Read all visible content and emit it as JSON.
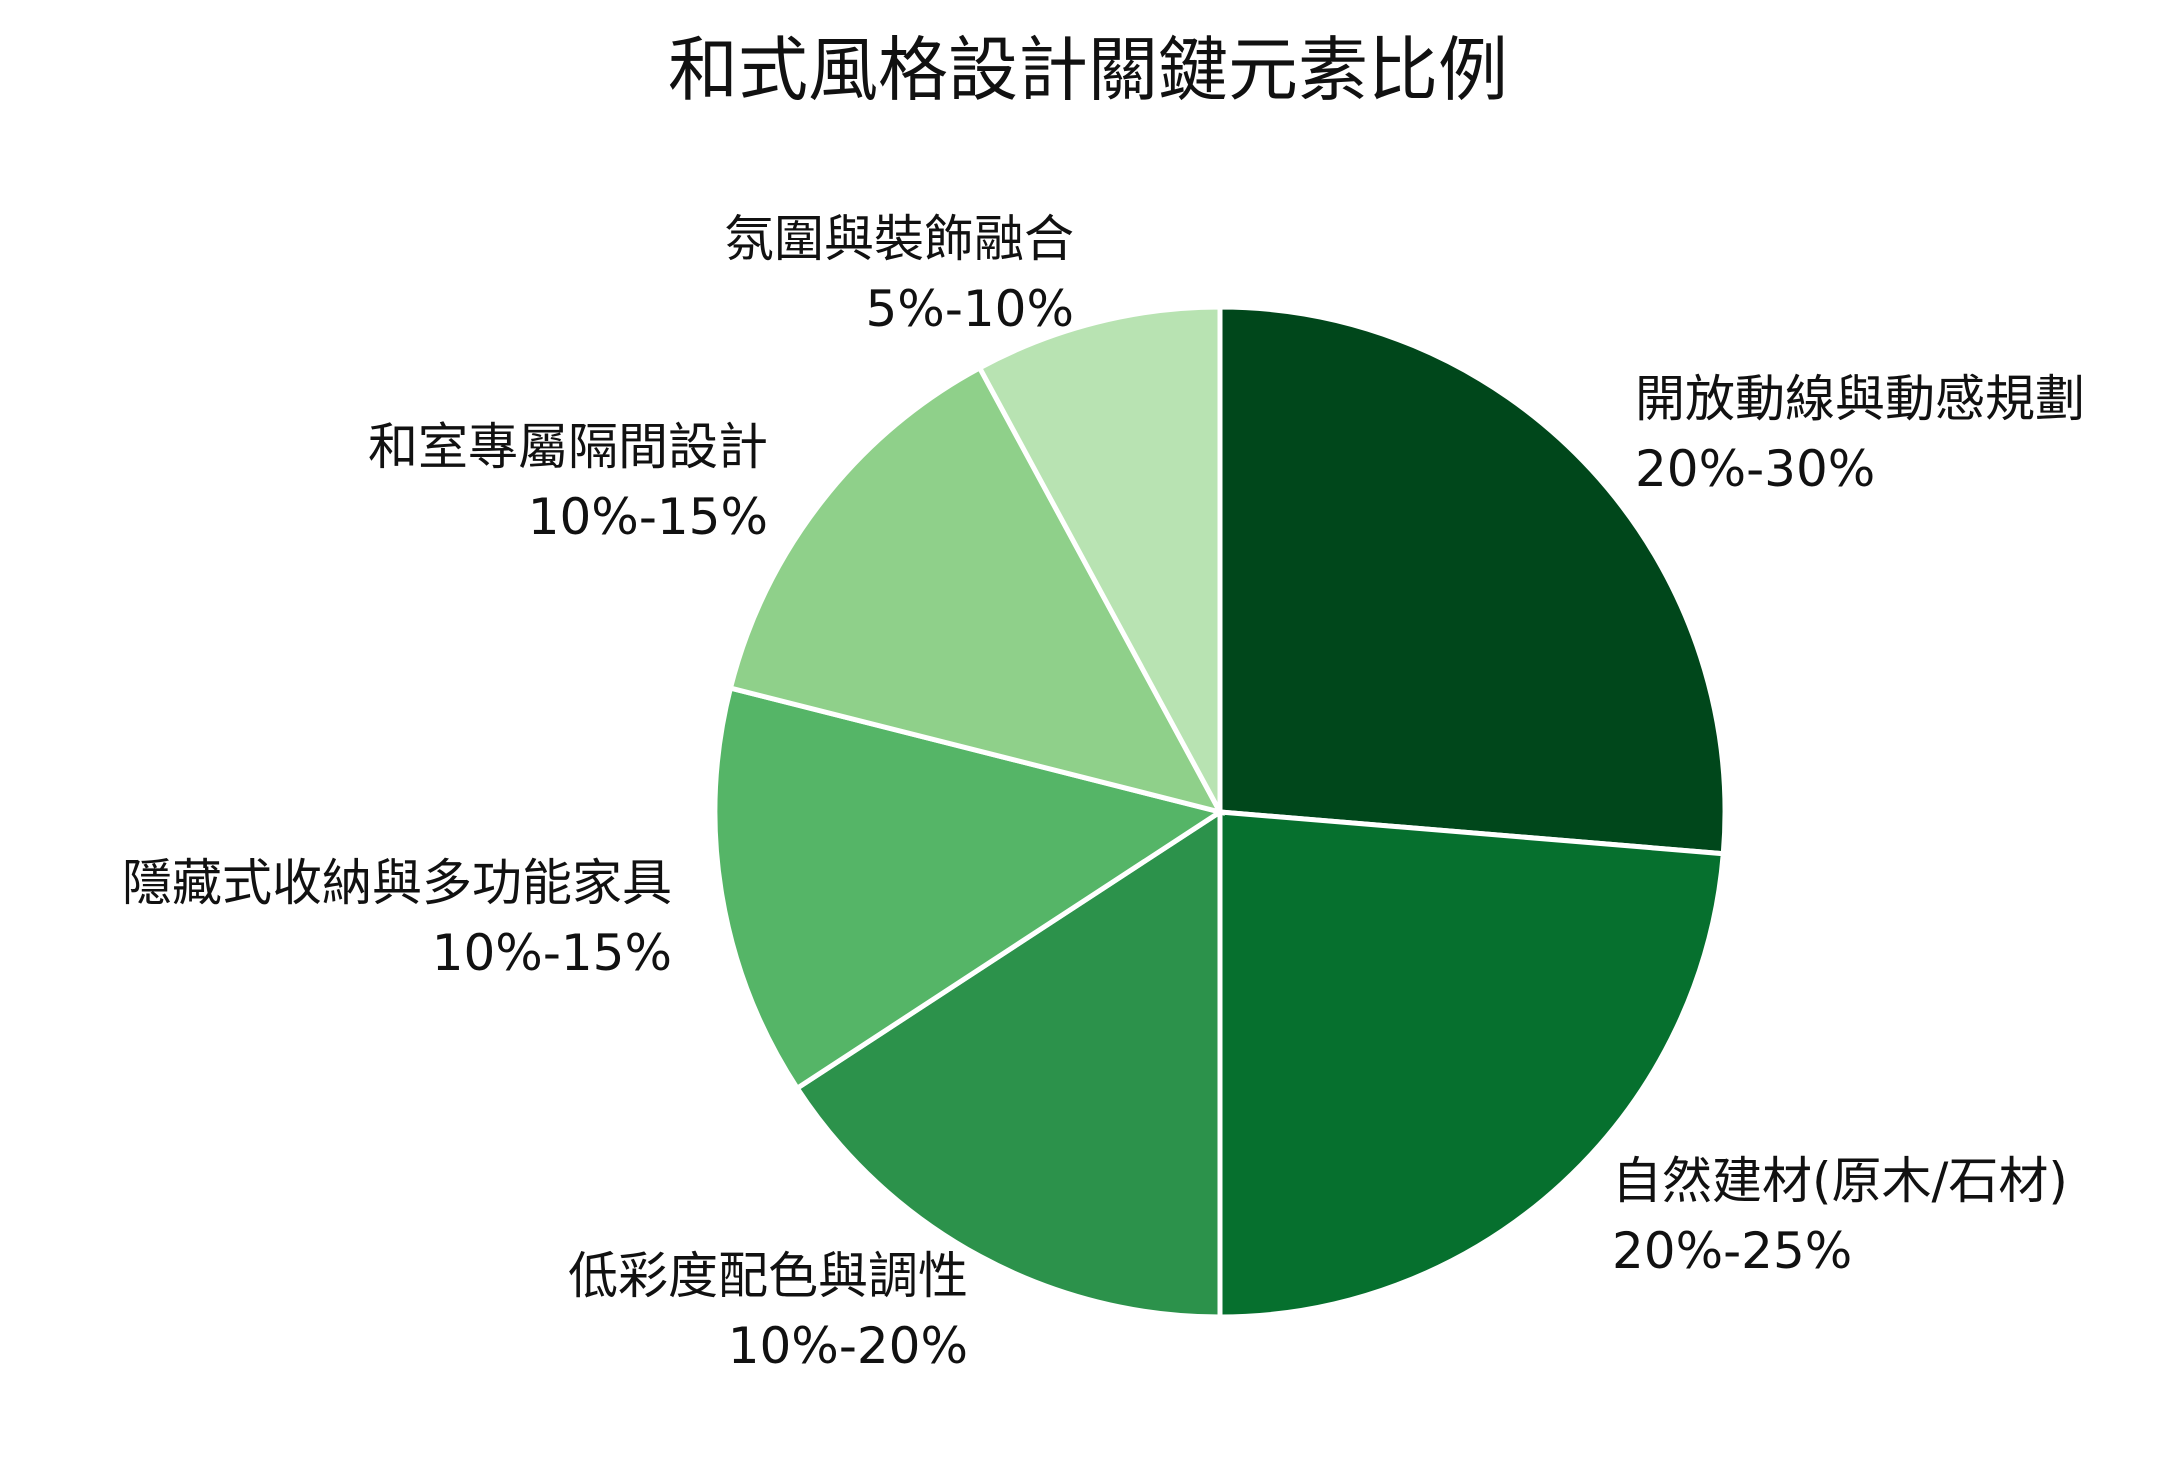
{
  "chart_data": {
    "type": "pie",
    "title": "和式風格設計關鍵元素比例",
    "slices": [
      {
        "label": "開放動線與動感規劃",
        "range_text": "20%-30%",
        "value": 25,
        "color": "#00471b"
      },
      {
        "label": "自然建材(原木/石材)",
        "range_text": "20%-25%",
        "value": 22.5,
        "color": "#06702e"
      },
      {
        "label": "低彩度配色與調性",
        "range_text": "10%-20%",
        "value": 15,
        "color": "#2c924b"
      },
      {
        "label": "隱藏式收納與多功能家具",
        "range_text": "10%-15%",
        "value": 12.5,
        "color": "#55b567"
      },
      {
        "label": "和室專屬隔間設計",
        "range_text": "10%-15%",
        "value": 12.5,
        "color": "#8fd08a"
      },
      {
        "label": "氛圍與裝飾融合",
        "range_text": "5%-10%",
        "value": 7.5,
        "color": "#b8e3b2"
      }
    ],
    "start_angle_deg": 0,
    "direction": "clockwise",
    "legend": "none"
  }
}
